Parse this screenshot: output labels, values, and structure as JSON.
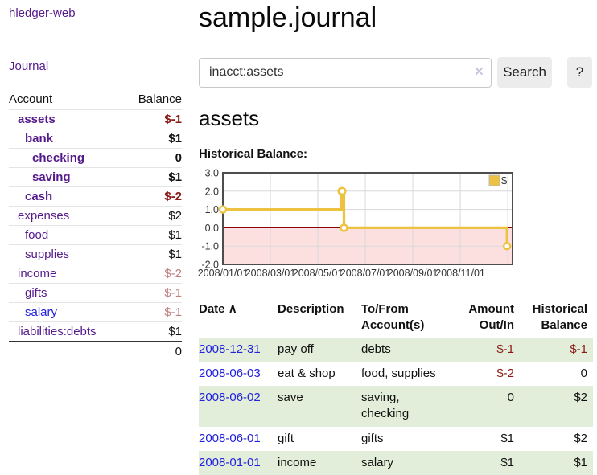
{
  "app": {
    "title": "hledger-web"
  },
  "sidebar": {
    "journal_link": "Journal",
    "table": {
      "account_header": "Account",
      "balance_header": "Balance",
      "rows": [
        {
          "name": "assets",
          "indent": 0,
          "bold": true,
          "balance": "$-1",
          "balance_style": "neg"
        },
        {
          "name": "bank",
          "indent": 1,
          "bold": true,
          "balance": "$1",
          "balance_style": ""
        },
        {
          "name": "checking",
          "indent": 2,
          "bold": true,
          "balance": "0",
          "balance_style": ""
        },
        {
          "name": "saving",
          "indent": 2,
          "bold": true,
          "balance": "$1",
          "balance_style": ""
        },
        {
          "name": "cash",
          "indent": 1,
          "bold": true,
          "balance": "$-2",
          "balance_style": "neg"
        },
        {
          "name": "expenses",
          "indent": 0,
          "bold": false,
          "balance": "$2",
          "balance_style": ""
        },
        {
          "name": "food",
          "indent": 1,
          "bold": false,
          "balance": "$1",
          "balance_style": ""
        },
        {
          "name": "supplies",
          "indent": 1,
          "bold": false,
          "balance": "$1",
          "balance_style": ""
        },
        {
          "name": "income",
          "indent": 0,
          "bold": false,
          "balance": "$-2",
          "balance_style": "neg-soft"
        },
        {
          "name": "gifts",
          "indent": 1,
          "bold": false,
          "balance": "$-1",
          "balance_style": "neg-soft"
        },
        {
          "name": "salary",
          "indent": 1,
          "bold": false,
          "balance": "$-1",
          "balance_style": "neg-soft",
          "link_style": "unvisited"
        },
        {
          "name": "liabilities:debts",
          "indent": 0,
          "bold": false,
          "balance": "$1",
          "balance_style": ""
        }
      ],
      "total": "0"
    }
  },
  "header": {
    "title": "sample.journal"
  },
  "search": {
    "value": "inacct:assets",
    "clear_icon": "×",
    "button_label": "Search",
    "help_label": "?"
  },
  "account_page": {
    "title": "assets",
    "chart_label": "Historical Balance:"
  },
  "chart_data": {
    "type": "line",
    "title": "Historical Balance:",
    "step": true,
    "series": [
      {
        "name": "$",
        "color": "#edc240",
        "points": [
          {
            "date": "2008-01-01",
            "m": 0,
            "y": 1
          },
          {
            "date": "2008-06-01",
            "m": 5.0,
            "y": 2
          },
          {
            "date": "2008-06-02",
            "m": 5.03,
            "y": 2
          },
          {
            "date": "2008-06-03",
            "m": 5.1,
            "y": 0
          },
          {
            "date": "2008-12-31",
            "m": 11.97,
            "y": -1
          }
        ]
      }
    ],
    "x_ticks": [
      {
        "label": "2008/01/01",
        "m": 0
      },
      {
        "label": "2008/03/01",
        "m": 2
      },
      {
        "label": "2008/05/01",
        "m": 4
      },
      {
        "label": "2008/07/01",
        "m": 6
      },
      {
        "label": "2008/09/01",
        "m": 8
      },
      {
        "label": "2008/11/01",
        "m": 10
      }
    ],
    "x_grid_months": [
      2,
      4,
      6,
      8,
      10,
      12
    ],
    "y_ticks": [
      {
        "label": "3.0",
        "y": 3
      },
      {
        "label": "2.0",
        "y": 2
      },
      {
        "label": "1.0",
        "y": 1
      },
      {
        "label": "0.0",
        "y": 0
      },
      {
        "label": "-1.0",
        "y": -1
      },
      {
        "label": "-2.0",
        "y": -2
      }
    ],
    "y_gridlines": [
      2,
      1,
      -1
    ],
    "ylim": [
      -2,
      3
    ],
    "xlim_months": [
      0,
      12.2
    ],
    "grid": true,
    "legend_position": "top-right",
    "legend": {
      "label": "$",
      "swatch_color": "#edc240"
    },
    "negative_region_color": "#fcdfdf",
    "zero_line_color": "#8b0000",
    "grid_color": "#d8d8d8",
    "border_color": "#4d4d4d"
  },
  "transactions": {
    "headers": {
      "date": "Date",
      "description": "Description",
      "accounts": "To/From Account(s)",
      "amount": "Amount Out/In",
      "balance": "Historical Balance"
    },
    "sort_icon": "∧",
    "rows": [
      {
        "date": "2008-12-31",
        "description": "pay off",
        "accounts": "debts",
        "amount": "$-1",
        "amount_neg": true,
        "balance": "$-1",
        "balance_neg": true
      },
      {
        "date": "2008-06-03",
        "description": "eat & shop",
        "accounts": "food, supplies",
        "amount": "$-2",
        "amount_neg": true,
        "balance": "0",
        "balance_neg": false
      },
      {
        "date": "2008-06-02",
        "description": "save",
        "accounts": "saving, checking",
        "amount": "0",
        "amount_neg": false,
        "balance": "$2",
        "balance_neg": false
      },
      {
        "date": "2008-06-01",
        "description": "gift",
        "accounts": "gifts",
        "amount": "$1",
        "amount_neg": false,
        "balance": "$2",
        "balance_neg": false
      },
      {
        "date": "2008-01-01",
        "description": "income",
        "accounts": "salary",
        "amount": "$1",
        "amount_neg": false,
        "balance": "$1",
        "balance_neg": false
      }
    ]
  },
  "colors": {
    "link_purple": "#551a8b",
    "link_blue": "#2121de",
    "negative_strong": "#8b1a17",
    "negative_soft": "#bf7f7f",
    "row_stripe_green": "#e2eed9",
    "chart_line_gold": "#edc240"
  }
}
